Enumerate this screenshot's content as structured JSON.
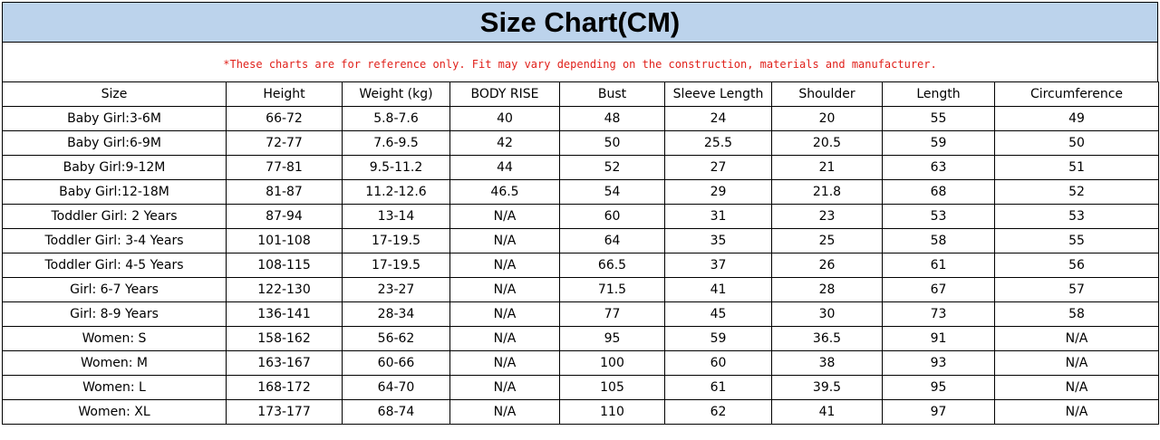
{
  "title": "Size Chart(CM)",
  "note": "*These charts are for reference only. Fit may vary depending on the construction, materials and manufacturer.",
  "columns": [
    "Size",
    "Height",
    "Weight (kg)",
    "BODY RISE",
    "Bust",
    "Sleeve Length",
    "Shoulder",
    "Length",
    "Circumference"
  ],
  "rows": [
    [
      "Baby Girl:3-6M",
      "66-72",
      "5.8-7.6",
      "40",
      "48",
      "24",
      "20",
      "55",
      "49"
    ],
    [
      "Baby Girl:6-9M",
      "72-77",
      "7.6-9.5",
      "42",
      "50",
      "25.5",
      "20.5",
      "59",
      "50"
    ],
    [
      "Baby Girl:9-12M",
      "77-81",
      "9.5-11.2",
      "44",
      "52",
      "27",
      "21",
      "63",
      "51"
    ],
    [
      "Baby Girl:12-18M",
      "81-87",
      "11.2-12.6",
      "46.5",
      "54",
      "29",
      "21.8",
      "68",
      "52"
    ],
    [
      "Toddler Girl: 2 Years",
      "87-94",
      "13-14",
      "N/A",
      "60",
      "31",
      "23",
      "53",
      "53"
    ],
    [
      "Toddler Girl: 3-4 Years",
      "101-108",
      "17-19.5",
      "N/A",
      "64",
      "35",
      "25",
      "58",
      "55"
    ],
    [
      "Toddler Girl: 4-5 Years",
      "108-115",
      "17-19.5",
      "N/A",
      "66.5",
      "37",
      "26",
      "61",
      "56"
    ],
    [
      "Girl: 6-7 Years",
      "122-130",
      "23-27",
      "N/A",
      "71.5",
      "41",
      "28",
      "67",
      "57"
    ],
    [
      "Girl: 8-9 Years",
      "136-141",
      "28-34",
      "N/A",
      "77",
      "45",
      "30",
      "73",
      "58"
    ],
    [
      "Women: S",
      "158-162",
      "56-62",
      "N/A",
      "95",
      "59",
      "36.5",
      "91",
      "N/A"
    ],
    [
      "Women: M",
      "163-167",
      "60-66",
      "N/A",
      "100",
      "60",
      "38",
      "93",
      "N/A"
    ],
    [
      "Women: L",
      "168-172",
      "64-70",
      "N/A",
      "105",
      "61",
      "39.5",
      "95",
      "N/A"
    ],
    [
      "Women: XL",
      "173-177",
      "68-74",
      "N/A",
      "110",
      "62",
      "41",
      "97",
      "N/A"
    ]
  ],
  "colors": {
    "title_background": "#bcd3ec",
    "note_text": "#e0201a"
  }
}
